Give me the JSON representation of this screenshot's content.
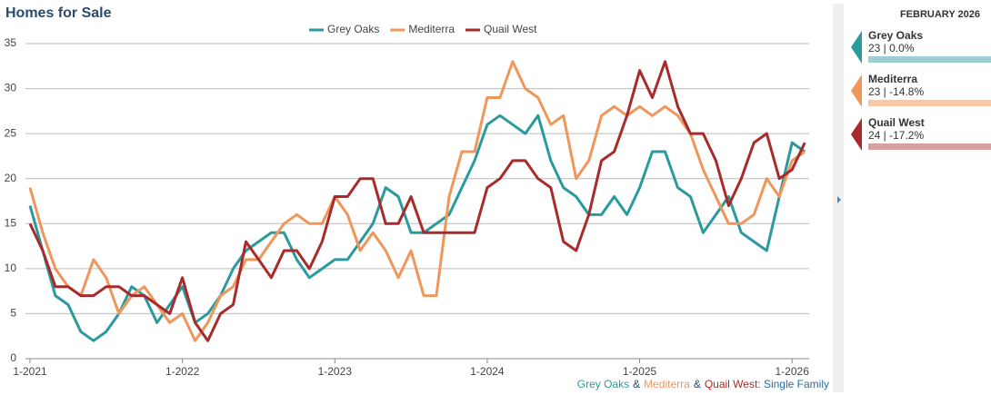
{
  "chart_data": {
    "type": "line",
    "title": "Homes for Sale",
    "categories": [
      "1-2021",
      null,
      null,
      null,
      null,
      null,
      null,
      null,
      null,
      null,
      null,
      null,
      "1-2022",
      null,
      null,
      null,
      null,
      null,
      null,
      null,
      null,
      null,
      null,
      null,
      "1-2023",
      null,
      null,
      null,
      null,
      null,
      null,
      null,
      null,
      null,
      null,
      null,
      "1-2024",
      null,
      null,
      null,
      null,
      null,
      null,
      null,
      null,
      null,
      null,
      null,
      "1-2025",
      null,
      null,
      null,
      null,
      null,
      null,
      null,
      null,
      null,
      null,
      null,
      "1-2026",
      null
    ],
    "series": [
      {
        "name": "Grey Oaks",
        "color": "#2a9a9e",
        "values": [
          17,
          12,
          7,
          6,
          3,
          2,
          3,
          5,
          8,
          7,
          4,
          6,
          8,
          4,
          5,
          7,
          10,
          12,
          13,
          14,
          14,
          11,
          9,
          10,
          11,
          11,
          13,
          15,
          19,
          18,
          14,
          14,
          15,
          16,
          19,
          22,
          26,
          27,
          26,
          25,
          27,
          22,
          19,
          18,
          16,
          16,
          18,
          16,
          19,
          23,
          23,
          19,
          18,
          14,
          16,
          18,
          14,
          13,
          12,
          18,
          24,
          23
        ]
      },
      {
        "name": "Mediterra",
        "color": "#f0965a",
        "values": [
          19,
          14,
          10,
          8,
          7,
          11,
          9,
          5,
          7,
          8,
          6,
          4,
          5,
          2,
          4,
          7,
          8,
          11,
          11,
          13,
          15,
          16,
          15,
          15,
          18,
          16,
          12,
          14,
          12,
          9,
          12,
          7,
          7,
          18,
          23,
          23,
          29,
          29,
          33,
          30,
          29,
          26,
          27,
          20,
          22,
          27,
          28,
          27,
          28,
          27,
          28,
          27,
          25,
          21,
          18,
          15,
          15,
          16,
          20,
          18,
          22,
          23
        ]
      },
      {
        "name": "Quail West",
        "color": "#a82a2a",
        "values": [
          15,
          12,
          8,
          8,
          7,
          7,
          8,
          8,
          7,
          7,
          6,
          5,
          9,
          4,
          2,
          5,
          6,
          13,
          11,
          9,
          12,
          12,
          10,
          13,
          18,
          18,
          20,
          20,
          15,
          15,
          18,
          14,
          14,
          14,
          14,
          14,
          19,
          20,
          22,
          22,
          20,
          19,
          13,
          12,
          16,
          22,
          23,
          27,
          32,
          29,
          33,
          28,
          25,
          25,
          22,
          17,
          20,
          24,
          25,
          20,
          21,
          24
        ]
      }
    ],
    "ylim": [
      0,
      35
    ],
    "yticks": [
      0,
      5,
      10,
      15,
      20,
      25,
      30,
      35
    ],
    "grid": true,
    "caption": {
      "separator": "&",
      "suffix": ": Single Family"
    },
    "panel": {
      "title": "FEBRUARY 2026",
      "items": [
        {
          "name": "Grey Oaks",
          "text": "23 | 0.0%",
          "color": "#2a9a9e",
          "bar_color": "#9ccfd1"
        },
        {
          "name": "Mediterra",
          "text": "23 | -14.8%",
          "color": "#f0965a",
          "bar_color": "#f6c9aa"
        },
        {
          "name": "Quail West",
          "text": "24 | -17.2%",
          "color": "#a82a2a",
          "bar_color": "#d7a0a0"
        }
      ]
    }
  }
}
